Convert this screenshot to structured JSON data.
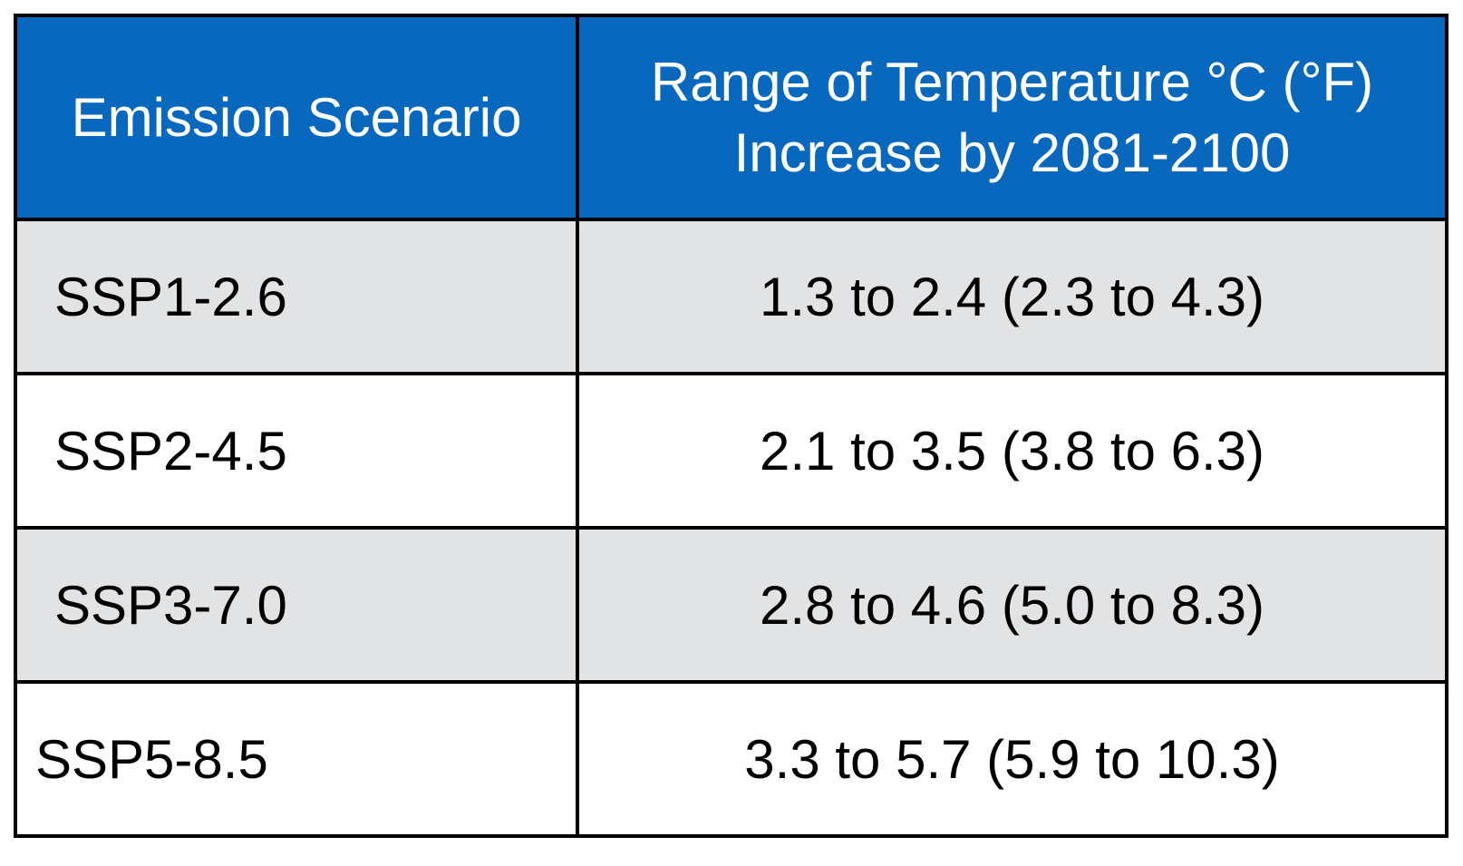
{
  "colors": {
    "header_bg": "#0768BD",
    "header_text": "#FFFFFF",
    "row_alt_bg": "#E2E3E5",
    "row_bg": "#FFFFFF",
    "border": "#000000",
    "body_text": "#000000"
  },
  "table": {
    "header": {
      "col1": "Emission Scenario",
      "col2_line1": "Range of Temperature °C (°F)",
      "col2_line2": "Increase by 2081-2100"
    },
    "rows": [
      {
        "scenario": "SSP1-2.6",
        "range": "1.3 to 2.4 (2.3 to 4.3)"
      },
      {
        "scenario": "SSP2-4.5",
        "range": "2.1 to 3.5 (3.8 to 6.3)"
      },
      {
        "scenario": "SSP3-7.0",
        "range": "2.8 to 4.6 (5.0 to 8.3)"
      },
      {
        "scenario": "SSP5-8.5",
        "range": "3.3 to 5.7 (5.9 to 10.3)"
      }
    ]
  },
  "chart_data": {
    "type": "table",
    "columns": [
      "Emission Scenario",
      "Range of Temperature °C (°F) Increase by 2081-2100"
    ],
    "rows": [
      [
        "SSP1-2.6",
        "1.3 to 2.4 (2.3 to 4.3)"
      ],
      [
        "SSP2-4.5",
        "2.1 to 3.5 (3.8 to 6.3)"
      ],
      [
        "SSP3-7.0",
        "2.8 to 4.6 (5.0 to 8.3)"
      ],
      [
        "SSP5-8.5",
        "3.3 to 5.7 (5.9 to 10.3)"
      ]
    ],
    "values": [
      {
        "scenario": "SSP1-2.6",
        "temp_c_min": 1.3,
        "temp_c_max": 2.4,
        "temp_f_min": 2.3,
        "temp_f_max": 4.3
      },
      {
        "scenario": "SSP2-4.5",
        "temp_c_min": 2.1,
        "temp_c_max": 3.5,
        "temp_f_min": 3.8,
        "temp_f_max": 6.3
      },
      {
        "scenario": "SSP3-7.0",
        "temp_c_min": 2.8,
        "temp_c_max": 4.6,
        "temp_f_min": 5.0,
        "temp_f_max": 8.3
      },
      {
        "scenario": "SSP5-8.5",
        "temp_c_min": 3.3,
        "temp_c_max": 5.7,
        "temp_f_min": 5.9,
        "temp_f_max": 10.3
      }
    ],
    "title": "",
    "notes": "Projected global temperature increase by 2081-2100 per SSP emission scenario; header row blue, rows alternate gray/white"
  }
}
